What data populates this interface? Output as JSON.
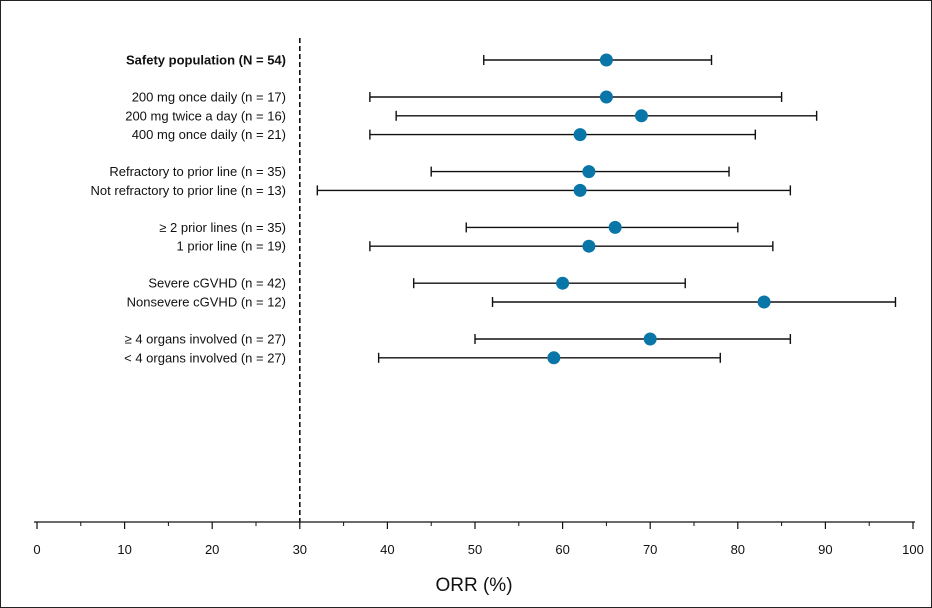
{
  "chart_data": {
    "type": "forest",
    "xlabel": "ORR (%)",
    "xlim": [
      0,
      100
    ],
    "xticks": [
      "0",
      "10",
      "20",
      "30",
      "40",
      "50",
      "60",
      "70",
      "80",
      "90",
      "100"
    ],
    "reference_line": 30,
    "grid": false,
    "marker_color": "#0a76a8",
    "groups": [
      {
        "rows": [
          {
            "label": "Safety population (N = 54)",
            "bold": true,
            "value": 65,
            "lower": 51,
            "upper": 77
          }
        ]
      },
      {
        "rows": [
          {
            "label": "200 mg once daily (n = 17)",
            "value": 65,
            "lower": 38,
            "upper": 85
          },
          {
            "label": "200 mg twice a day (n = 16)",
            "value": 69,
            "lower": 41,
            "upper": 89
          },
          {
            "label": "400 mg once daily (n = 21)",
            "value": 62,
            "lower": 38,
            "upper": 82
          }
        ]
      },
      {
        "rows": [
          {
            "label": "Refractory to prior line (n = 35)",
            "value": 63,
            "lower": 45,
            "upper": 79
          },
          {
            "label": "Not refractory to prior line (n = 13)",
            "value": 62,
            "lower": 32,
            "upper": 86
          }
        ]
      },
      {
        "rows": [
          {
            "label": "≥ 2 prior lines (n = 35)",
            "value": 66,
            "lower": 49,
            "upper": 80
          },
          {
            "label": "1 prior line (n = 19)",
            "value": 63,
            "lower": 38,
            "upper": 84
          }
        ]
      },
      {
        "rows": [
          {
            "label": "Severe cGVHD (n = 42)",
            "value": 60,
            "lower": 43,
            "upper": 74
          },
          {
            "label": "Nonsevere cGVHD (n = 12)",
            "value": 83,
            "lower": 52,
            "upper": 98
          }
        ]
      },
      {
        "rows": [
          {
            "label": "≥ 4 organs involved (n = 27)",
            "value": 70,
            "lower": 50,
            "upper": 86
          },
          {
            "label": "< 4 organs involved (n = 27)",
            "value": 59,
            "lower": 39,
            "upper": 78
          }
        ]
      }
    ]
  }
}
